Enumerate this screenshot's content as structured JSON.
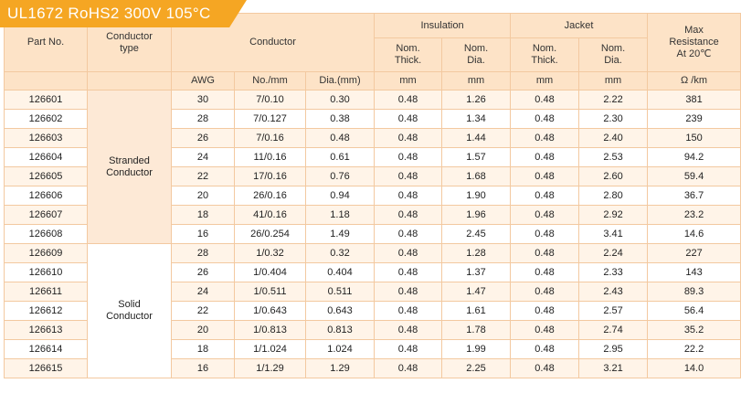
{
  "title": "UL1672  RoHS2  300V  105°C",
  "headers": {
    "part_no": "Part No.",
    "conductor_type": [
      "Conductor",
      "type"
    ],
    "conductor": "Conductor",
    "insulation": "Insulation",
    "jacket": "Jacket",
    "max_resistance": [
      "Max",
      "Resistance",
      "At  20℃"
    ],
    "nom_thick": [
      "Nom.",
      "Thick."
    ],
    "nom_dia": [
      "Nom.",
      "Dia."
    ],
    "awg": "AWG",
    "no_mm": "No./mm",
    "dia_mm": "Dia.(mm)",
    "mm": "mm",
    "ohm_km": "Ω /km"
  },
  "groups": {
    "stranded": [
      "Stranded",
      "Conductor"
    ],
    "solid": [
      "Solid",
      "Conductor"
    ]
  },
  "rows": [
    {
      "part": "126601",
      "awg": "30",
      "no": "7/0.10",
      "dia": "0.30",
      "ins_t": "0.48",
      "ins_d": "1.26",
      "jk_t": "0.48",
      "jk_d": "2.22",
      "res": "381"
    },
    {
      "part": "126602",
      "awg": "28",
      "no": "7/0.127",
      "dia": "0.38",
      "ins_t": "0.48",
      "ins_d": "1.34",
      "jk_t": "0.48",
      "jk_d": "2.30",
      "res": "239"
    },
    {
      "part": "126603",
      "awg": "26",
      "no": "7/0.16",
      "dia": "0.48",
      "ins_t": "0.48",
      "ins_d": "1.44",
      "jk_t": "0.48",
      "jk_d": "2.40",
      "res": "150"
    },
    {
      "part": "126604",
      "awg": "24",
      "no": "11/0.16",
      "dia": "0.61",
      "ins_t": "0.48",
      "ins_d": "1.57",
      "jk_t": "0.48",
      "jk_d": "2.53",
      "res": "94.2"
    },
    {
      "part": "126605",
      "awg": "22",
      "no": "17/0.16",
      "dia": "0.76",
      "ins_t": "0.48",
      "ins_d": "1.68",
      "jk_t": "0.48",
      "jk_d": "2.60",
      "res": "59.4"
    },
    {
      "part": "126606",
      "awg": "20",
      "no": "26/0.16",
      "dia": "0.94",
      "ins_t": "0.48",
      "ins_d": "1.90",
      "jk_t": "0.48",
      "jk_d": "2.80",
      "res": "36.7"
    },
    {
      "part": "126607",
      "awg": "18",
      "no": "41/0.16",
      "dia": "1.18",
      "ins_t": "0.48",
      "ins_d": "1.96",
      "jk_t": "0.48",
      "jk_d": "2.92",
      "res": "23.2"
    },
    {
      "part": "126608",
      "awg": "16",
      "no": "26/0.254",
      "dia": "1.49",
      "ins_t": "0.48",
      "ins_d": "2.45",
      "jk_t": "0.48",
      "jk_d": "3.41",
      "res": "14.6"
    },
    {
      "part": "126609",
      "awg": "28",
      "no": "1/0.32",
      "dia": "0.32",
      "ins_t": "0.48",
      "ins_d": "1.28",
      "jk_t": "0.48",
      "jk_d": "2.24",
      "res": "227"
    },
    {
      "part": "126610",
      "awg": "26",
      "no": "1/0.404",
      "dia": "0.404",
      "ins_t": "0.48",
      "ins_d": "1.37",
      "jk_t": "0.48",
      "jk_d": "2.33",
      "res": "143"
    },
    {
      "part": "126611",
      "awg": "24",
      "no": "1/0.511",
      "dia": "0.511",
      "ins_t": "0.48",
      "ins_d": "1.47",
      "jk_t": "0.48",
      "jk_d": "2.43",
      "res": "89.3"
    },
    {
      "part": "126612",
      "awg": "22",
      "no": "1/0.643",
      "dia": "0.643",
      "ins_t": "0.48",
      "ins_d": "1.61",
      "jk_t": "0.48",
      "jk_d": "2.57",
      "res": "56.4"
    },
    {
      "part": "126613",
      "awg": "20",
      "no": "1/0.813",
      "dia": "0.813",
      "ins_t": "0.48",
      "ins_d": "1.78",
      "jk_t": "0.48",
      "jk_d": "2.74",
      "res": "35.2"
    },
    {
      "part": "126614",
      "awg": "18",
      "no": "1/1.024",
      "dia": "1.024",
      "ins_t": "0.48",
      "ins_d": "1.99",
      "jk_t": "0.48",
      "jk_d": "2.95",
      "res": "22.2"
    },
    {
      "part": "126615",
      "awg": "16",
      "no": "1/1.29",
      "dia": "1.29",
      "ins_t": "0.48",
      "ins_d": "2.25",
      "jk_t": "0.48",
      "jk_d": "3.21",
      "res": "14.0"
    }
  ]
}
